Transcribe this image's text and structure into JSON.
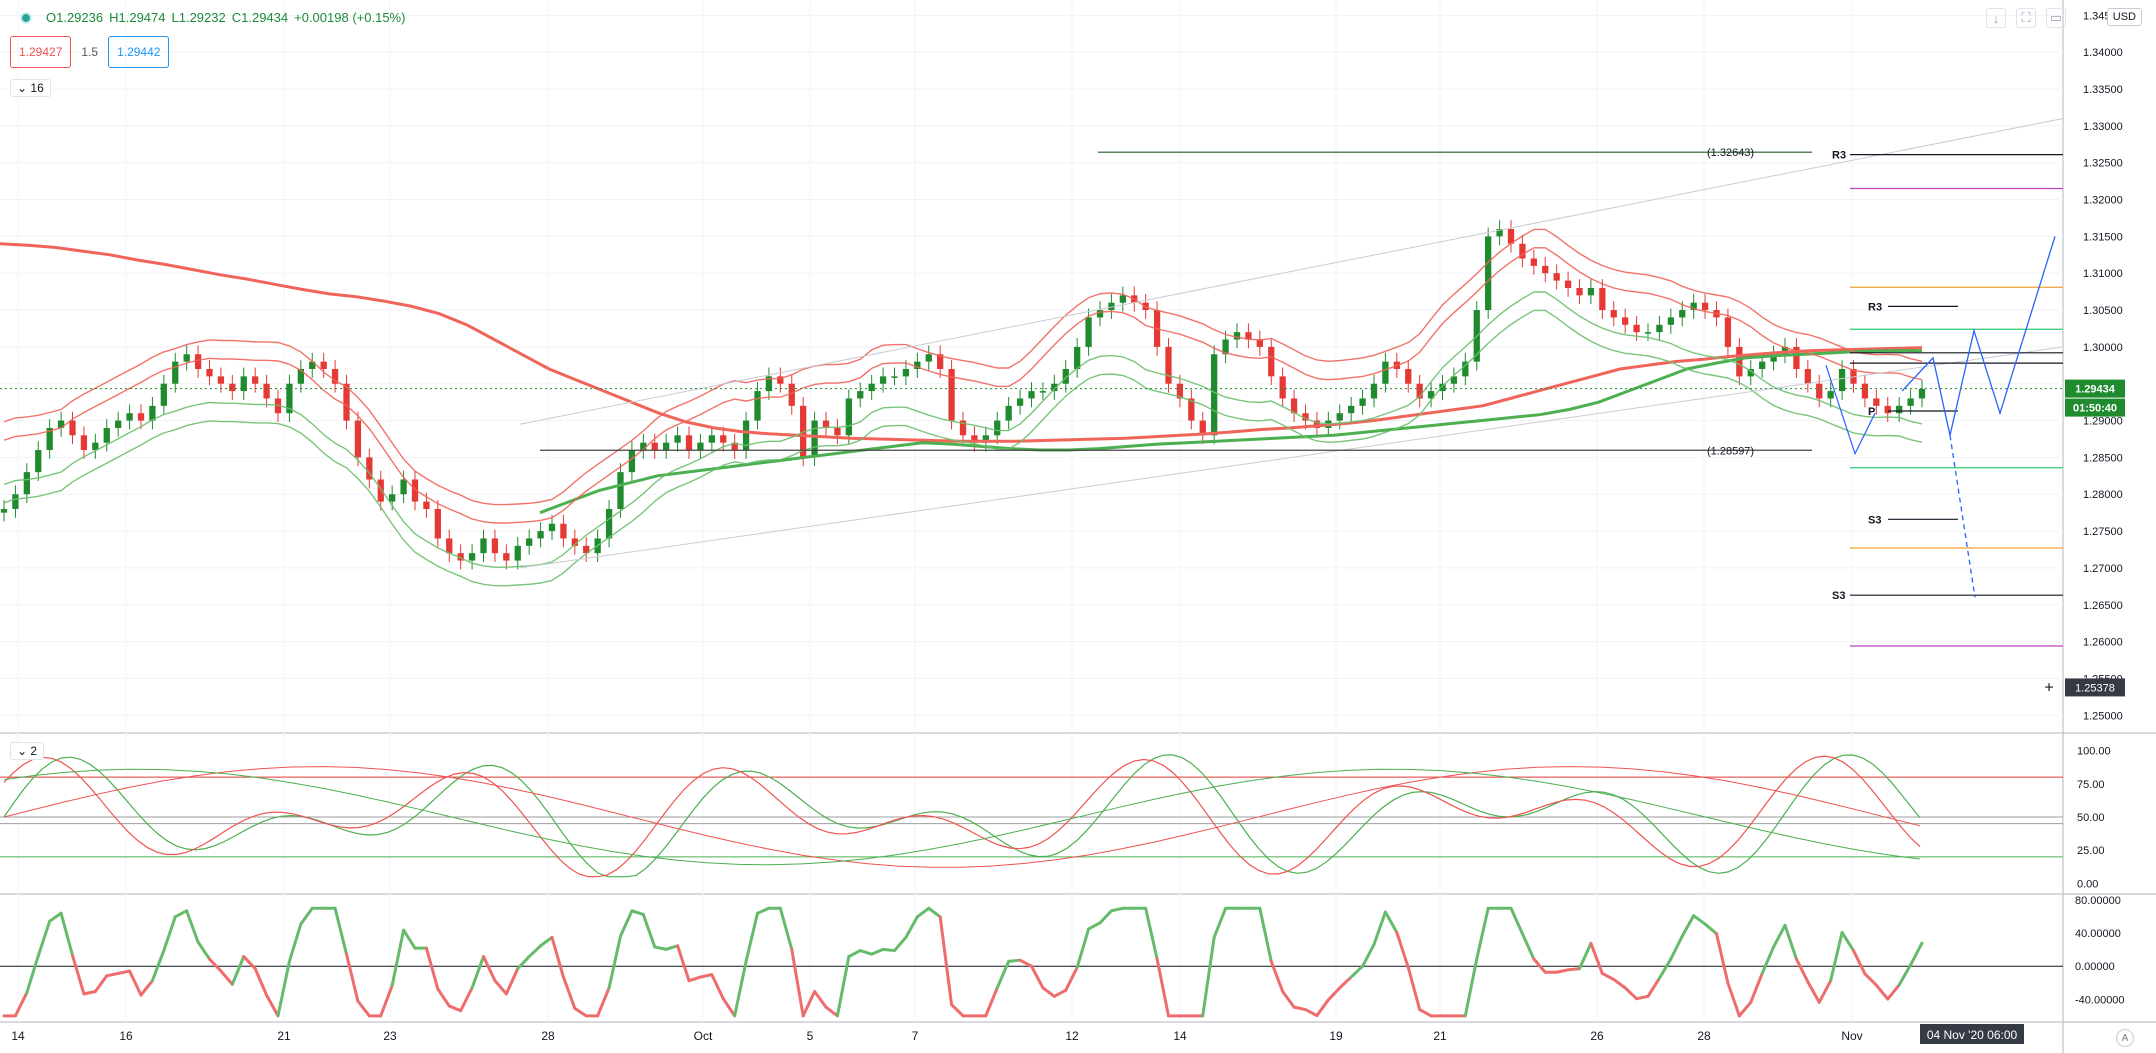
{
  "ohlc": {
    "o": "O1.29236",
    "h": "H1.29474",
    "l": "L1.29232",
    "c": "C1.29434",
    "chg": "+0.00198 (+0.15%)"
  },
  "trade": {
    "sell": "1.29427",
    "spread": "1.5",
    "buy": "1.29442"
  },
  "panes": {
    "main_toggle": "16",
    "osc_toggle": "2"
  },
  "currency": "USD",
  "auto_label": "A",
  "price_tag": {
    "value": "1.29434",
    "countdown": "01:50:40",
    "crosshair": "1.25378"
  },
  "time_tag": "04 Nov '20   06:00",
  "colors": {
    "up": "#1f8a2e",
    "down": "#e53935",
    "green_line": "#4caf50",
    "red_line": "#f0645a",
    "blue": "#2962ff"
  },
  "chart_data": {
    "type": "line",
    "instrument_quote": "USD",
    "ylim": [
      1.248,
      1.346
    ],
    "y_ticks": [
      "1.34500",
      "1.34000",
      "1.33500",
      "1.33000",
      "1.32500",
      "1.32000",
      "1.31500",
      "1.31000",
      "1.30500",
      "1.30000",
      "1.29500",
      "1.29000",
      "1.28500",
      "1.28000",
      "1.27500",
      "1.27000",
      "1.26500",
      "1.26000",
      "1.25500",
      "1.25000"
    ],
    "x_ticks": [
      "14",
      "16",
      "21",
      "23",
      "28",
      "Oct",
      "5",
      "7",
      "12",
      "14",
      "19",
      "21",
      "26",
      "28",
      "Nov"
    ],
    "annotations": {
      "top_level": "(1.32643)",
      "bottom_level": "(1.28597)",
      "pivot_labels": [
        "R3",
        "R3",
        "S3",
        "S3",
        "P"
      ]
    },
    "closes": [
      1.278,
      1.28,
      1.283,
      1.286,
      1.289,
      1.29,
      1.288,
      1.286,
      1.287,
      1.289,
      1.29,
      1.291,
      1.29,
      1.292,
      1.295,
      1.298,
      1.299,
      1.297,
      1.296,
      1.295,
      1.294,
      1.296,
      1.295,
      1.293,
      1.291,
      1.295,
      1.297,
      1.298,
      1.297,
      1.295,
      1.29,
      1.285,
      1.282,
      1.279,
      1.28,
      1.282,
      1.279,
      1.278,
      1.274,
      1.272,
      1.271,
      1.272,
      1.274,
      1.272,
      1.271,
      1.273,
      1.274,
      1.275,
      1.276,
      1.274,
      1.273,
      1.272,
      1.274,
      1.278,
      1.283,
      1.286,
      1.287,
      1.286,
      1.287,
      1.288,
      1.286,
      1.287,
      1.288,
      1.287,
      1.286,
      1.29,
      1.294,
      1.296,
      1.295,
      1.292,
      1.285,
      1.29,
      1.289,
      1.288,
      1.293,
      1.294,
      1.295,
      1.296,
      1.296,
      1.297,
      1.298,
      1.299,
      1.297,
      1.29,
      1.288,
      1.287,
      1.288,
      1.29,
      1.292,
      1.293,
      1.294,
      1.294,
      1.295,
      1.297,
      1.3,
      1.304,
      1.305,
      1.306,
      1.307,
      1.306,
      1.305,
      1.3,
      1.295,
      1.293,
      1.29,
      1.288,
      1.299,
      1.301,
      1.302,
      1.301,
      1.3,
      1.296,
      1.293,
      1.291,
      1.29,
      1.289,
      1.29,
      1.291,
      1.292,
      1.293,
      1.295,
      1.298,
      1.297,
      1.295,
      1.293,
      1.294,
      1.295,
      1.296,
      1.298,
      1.305,
      1.315,
      1.316,
      1.314,
      1.312,
      1.311,
      1.31,
      1.309,
      1.308,
      1.307,
      1.308,
      1.305,
      1.304,
      1.303,
      1.302,
      1.302,
      1.303,
      1.304,
      1.305,
      1.306,
      1.305,
      1.304,
      1.3,
      1.296,
      1.297,
      1.298,
      1.299,
      1.3,
      1.297,
      1.295,
      1.293,
      1.294,
      1.297,
      1.295,
      1.293,
      1.292,
      1.291,
      1.292,
      1.293,
      1.2943
    ],
    "series": [
      {
        "values": [
          1.314,
          1.3138,
          1.3135,
          1.313,
          1.3125,
          1.3118,
          1.3112,
          1.3105,
          1.3098,
          1.3092,
          1.3085,
          1.3078,
          1.3072,
          1.3068,
          1.3062,
          1.3055,
          1.3045,
          1.303,
          1.301,
          1.299,
          1.297,
          1.2955,
          1.294,
          1.2925,
          1.291,
          1.2898,
          1.289,
          1.2885,
          1.2882,
          1.288,
          1.2878,
          1.2876,
          1.2875,
          1.2874,
          1.2873,
          1.2872,
          1.2872,
          1.2872,
          1.2873,
          1.2874,
          1.2875,
          1.2876,
          1.2878,
          1.288,
          1.2882,
          1.2885,
          1.2888,
          1.289,
          1.2893,
          1.2896,
          1.29,
          1.2905,
          1.291,
          1.2915,
          1.292,
          1.293,
          1.294,
          1.295,
          1.296,
          1.297,
          1.2975,
          1.298,
          1.2983,
          1.2987,
          1.299,
          1.2993,
          1.2995,
          1.2996,
          1.2997,
          1.2998,
          1.2999
        ]
      },
      {
        "values": [
          1.2775,
          1.279,
          1.2805,
          1.2815,
          1.2825,
          1.283,
          1.2835,
          1.284,
          1.2845,
          1.285,
          1.2855,
          1.286,
          1.2865,
          1.287,
          1.2868,
          1.2865,
          1.2862,
          1.286,
          1.286,
          1.2862,
          1.2865,
          1.2868,
          1.287,
          1.2872,
          1.2874,
          1.2876,
          1.2878,
          1.288,
          1.2884,
          1.2888,
          1.2892,
          1.2896,
          1.29,
          1.2904,
          1.2908,
          1.2915,
          1.2925,
          1.294,
          1.2955,
          1.297,
          1.2978,
          1.2985,
          1.2988,
          1.299,
          1.2992,
          1.2994,
          1.2995,
          1.2995
        ]
      }
    ],
    "oscillator": {
      "ylim": [
        -5,
        108
      ],
      "ticks": [
        "100.00",
        "75.00",
        "50.00",
        "25.00",
        "0.00"
      ],
      "levels": [
        80,
        50,
        45,
        20
      ]
    },
    "momentum": {
      "ylim": [
        -65,
        80
      ],
      "ticks": [
        "80.00000",
        "40.00000",
        "0.00000",
        "-40.00000"
      ]
    }
  }
}
